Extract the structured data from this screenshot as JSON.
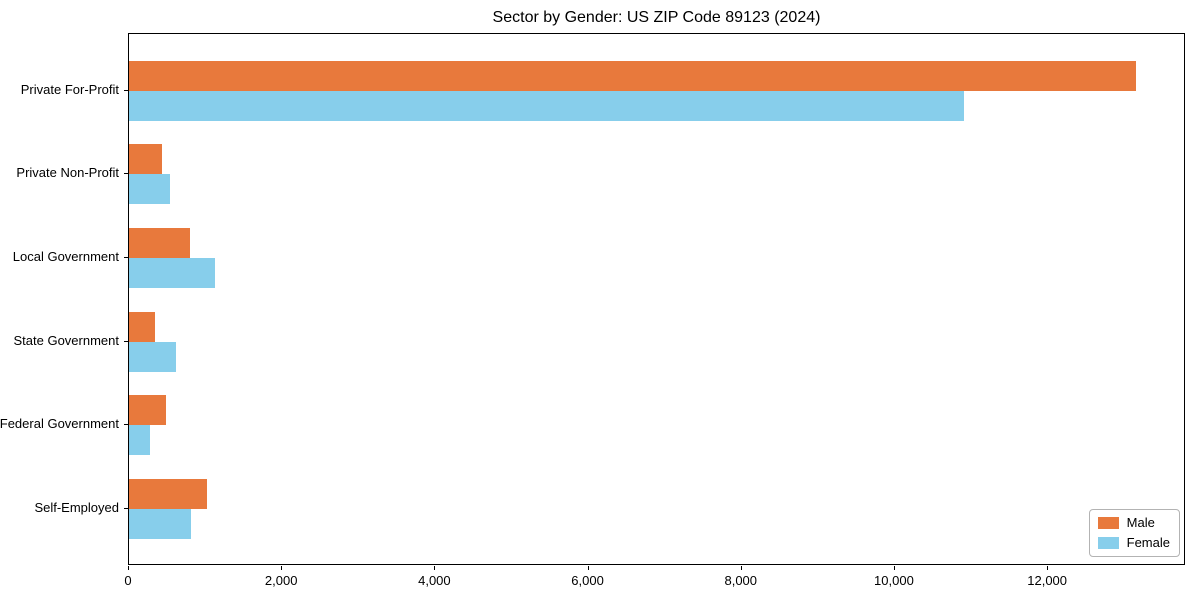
{
  "chart_data": {
    "type": "bar",
    "orientation": "horizontal",
    "title": "Sector by Gender: US ZIP Code 89123 (2024)",
    "categories": [
      "Private For-Profit",
      "Private Non-Profit",
      "Local Government",
      "State Government",
      "Federal Government",
      "Self-Employed"
    ],
    "series": [
      {
        "name": "Male",
        "color": "#e8793c",
        "values": [
          13150,
          430,
          800,
          340,
          480,
          1020
        ]
      },
      {
        "name": "Female",
        "color": "#87ceeb",
        "values": [
          10900,
          530,
          1120,
          610,
          270,
          810
        ]
      }
    ],
    "xlabel": "",
    "ylabel": "",
    "xlim": [
      0,
      13800
    ],
    "xticks": {
      "values": [
        0,
        2000,
        4000,
        6000,
        8000,
        10000,
        12000
      ],
      "labels": [
        "0",
        "2,000",
        "4,000",
        "6,000",
        "8,000",
        "10,000",
        "12,000"
      ]
    },
    "legend": {
      "position": "lower right",
      "entries": [
        "Male",
        "Female"
      ]
    },
    "grid": false,
    "background_color": "#ffffff",
    "text_color": "#000000",
    "spine_color": "#000000"
  }
}
